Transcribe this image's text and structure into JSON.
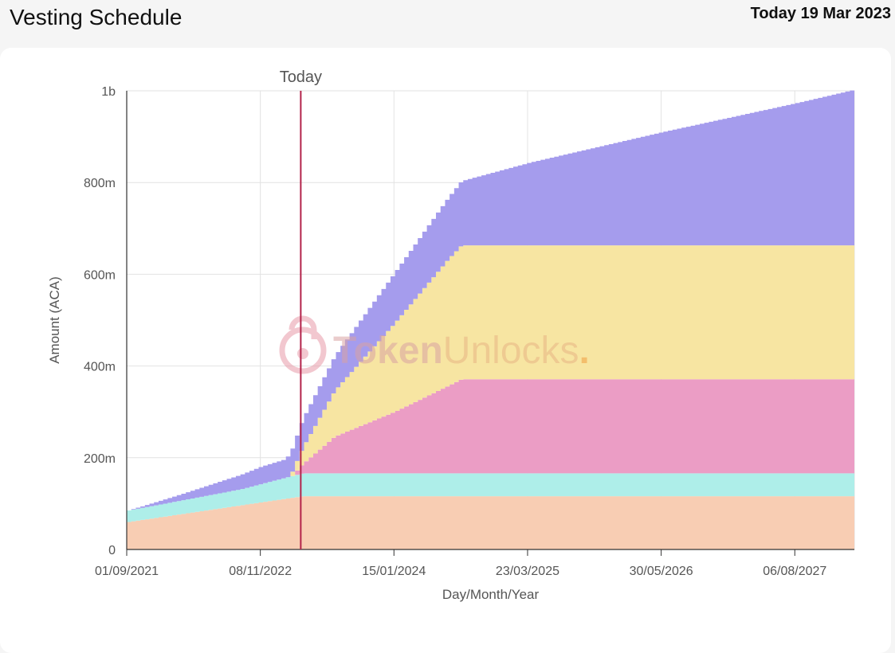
{
  "header": {
    "title": "Vesting Schedule",
    "today_text": "Today 19 Mar 2023"
  },
  "watermark": {
    "part1": "Token",
    "part2": "Unlocks",
    "dot": "."
  },
  "chart_data": {
    "type": "area",
    "stacked": true,
    "title": "",
    "xlabel": "Day/Month/Year",
    "ylabel": "Amount (ACA)",
    "x_start": "2021-09-01",
    "x_end": "2028-02-15",
    "x_ticks": [
      "2021-09-01",
      "2022-11-08",
      "2024-01-15",
      "2025-03-23",
      "2026-05-30",
      "2027-08-06"
    ],
    "x_tick_labels": [
      "01/09/2021",
      "08/11/2022",
      "15/01/2024",
      "23/03/2025",
      "30/05/2026",
      "06/08/2027"
    ],
    "ylim": [
      0,
      1000
    ],
    "y_ticks": [
      0,
      200,
      400,
      600,
      800,
      1000
    ],
    "y_tick_labels": [
      "0",
      "200m",
      "400m",
      "600m",
      "800m",
      "1b"
    ],
    "today_marker": {
      "date": "2023-03-19",
      "label": "Today"
    },
    "grid": true,
    "legend": "none",
    "series": [
      {
        "color": "#f8cdb3",
        "points": [
          [
            "2021-09-01",
            60
          ],
          [
            "2023-03-19",
            116
          ],
          [
            "2028-02-15",
            116
          ]
        ]
      },
      {
        "color": "#aeeee9",
        "points": [
          [
            "2021-09-01",
            25
          ],
          [
            "2022-09-01",
            35
          ],
          [
            "2023-03-19",
            50
          ],
          [
            "2028-02-15",
            50
          ]
        ]
      },
      {
        "color": "#eb9dc5",
        "points": [
          [
            "2021-09-01",
            0
          ],
          [
            "2023-02-18",
            0
          ],
          [
            "2023-03-01",
            10
          ],
          [
            "2023-03-19",
            20
          ],
          [
            "2023-07-01",
            80
          ],
          [
            "2024-01-15",
            135
          ],
          [
            "2024-07-01",
            190
          ],
          [
            "2024-08-15",
            205
          ],
          [
            "2028-02-15",
            205
          ]
        ]
      },
      {
        "color": "#f7e5a2",
        "points": [
          [
            "2021-09-01",
            0
          ],
          [
            "2023-02-01",
            0
          ],
          [
            "2023-03-19",
            35
          ],
          [
            "2023-07-01",
            100
          ],
          [
            "2024-01-15",
            195
          ],
          [
            "2024-07-01",
            275
          ],
          [
            "2024-08-15",
            292
          ],
          [
            "2028-02-15",
            292
          ]
        ]
      },
      {
        "color": "#a59ced",
        "points": [
          [
            "2021-09-01",
            0
          ],
          [
            "2022-02-01",
            12
          ],
          [
            "2022-11-08",
            38
          ],
          [
            "2023-01-15",
            40
          ],
          [
            "2023-03-19",
            62
          ],
          [
            "2023-07-01",
            75
          ],
          [
            "2024-01-15",
            110
          ],
          [
            "2024-08-15",
            140
          ],
          [
            "2025-03-23",
            180
          ],
          [
            "2026-05-30",
            247
          ],
          [
            "2027-08-06",
            310
          ],
          [
            "2028-02-15",
            340
          ]
        ]
      }
    ]
  }
}
